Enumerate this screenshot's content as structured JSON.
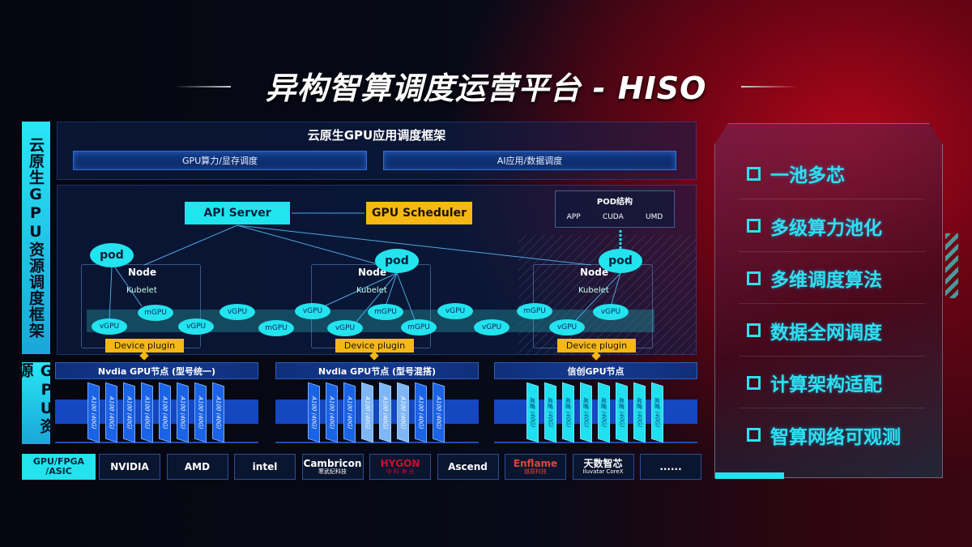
{
  "title": "异构智算调度运营平台 - HISO",
  "side_labels": {
    "top": "云原生GPU资源调度框架",
    "bottom": "GPU资源"
  },
  "framework": {
    "title": "云原生GPU应用调度框架",
    "boxes": [
      "GPU算力/显存调度",
      "AI应用/数据调度"
    ]
  },
  "diagram": {
    "api_server": "API Server",
    "gpu_scheduler": "GPU Scheduler",
    "pod_structure": {
      "title": "POD结构",
      "items": [
        "APP",
        "CUDA",
        "UMD"
      ]
    },
    "node_label": "Node",
    "kubelet_label": "Kubelet",
    "pod_label": "pod",
    "device_plugin": "Device plugin",
    "virtual_gpus": [
      "vGPU",
      "mGPU",
      "vGPU",
      "vGPU",
      "mGPU",
      "vGPU",
      "vGPU",
      "mGPU",
      "mGPU",
      "vGPU",
      "vGPU",
      "mGPU",
      "vGPU",
      "vGPU"
    ]
  },
  "gpu_nodes": [
    {
      "title": "Nvdia GPU节点 (型号统一)",
      "cards": [
        "A100 (40G)",
        "A100 (40G)",
        "A100 (40G)",
        "A100 (40G)",
        "A100 (40G)",
        "A100 (40G)",
        "A100 (40G)",
        "A100 (40G)"
      ]
    },
    {
      "title": "Nvdia GPU节点 (型号混搭)",
      "cards": [
        "A100 (40G)",
        "A100 (40G)",
        "A100 (40G)",
        "A100 (40G)",
        "A100 (40G)",
        "A100 (40G)",
        "A100 (40G)",
        "A100 (40G)"
      ]
    },
    {
      "title": "信创GPU节点",
      "cards": [
        "昇腾 (40G)",
        "昇腾 (40G)",
        "昇腾 (40G)",
        "昇腾 (40G)",
        "昇腾 (40G)",
        "昇腾 (40G)",
        "昇腾 (40G)",
        "昇腾 (40G)"
      ]
    }
  ],
  "vendors": {
    "label": "GPU/FPGA /ASIC",
    "items": [
      {
        "name": "NVIDIA",
        "color": "#ffffff"
      },
      {
        "name": "AMD",
        "color": "#ffffff"
      },
      {
        "name": "intel",
        "color": "#ffffff"
      },
      {
        "name": "Cambricon",
        "sub": "寒武纪科技",
        "color": "#ffffff"
      },
      {
        "name": "HYGON",
        "sub": "中 科 海 光",
        "color": "#c8102e"
      },
      {
        "name": "Ascend",
        "color": "#ffffff"
      },
      {
        "name": "Enflame",
        "sub": "燧原科技",
        "color": "#e0453a"
      },
      {
        "name": "天数智芯",
        "sub": "Iluvatar CoreX",
        "color": "#ffffff"
      },
      {
        "name": "......",
        "color": "#ffffff"
      }
    ]
  },
  "features": [
    "一池多芯",
    "多级算力池化",
    "多维调度算法",
    "数据全网调度",
    "计算架构适配",
    "智算网络可观测"
  ],
  "colors": {
    "cyan": "#20e5ef",
    "yellow": "#f5b814",
    "blue": "#1547c0"
  }
}
